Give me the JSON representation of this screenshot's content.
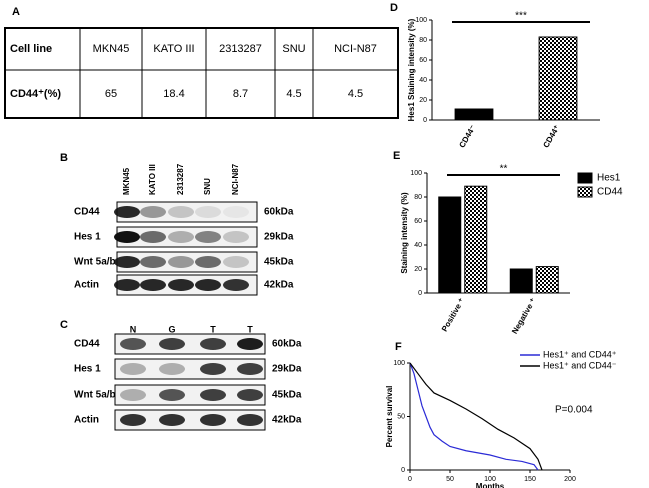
{
  "table": {
    "label": "A",
    "header": [
      "Cell line",
      "MKN45",
      "KATO III",
      "2313287",
      "SNU",
      "NCI-N87"
    ],
    "rows": [
      [
        "CD44⁺(%)",
        65,
        18.4,
        8.7,
        4.5,
        4.5
      ]
    ]
  },
  "blots": [
    {
      "label": "B",
      "lanes": [
        "MKN45",
        "KATO III",
        "2313287",
        "SNU",
        "NCI-N87"
      ],
      "rows": [
        {
          "name": "CD44",
          "size": "60kDa"
        },
        {
          "name": "Hes 1",
          "size": "29kDa"
        },
        {
          "name": "Wnt 5a/b",
          "size": "45kDa"
        },
        {
          "name": "Actin",
          "size": "42kDa"
        }
      ]
    },
    {
      "label": "C",
      "lanes": [
        "N",
        "G",
        "T",
        "T"
      ],
      "rows": [
        {
          "name": "CD44",
          "size": "60kDa"
        },
        {
          "name": "Hes 1",
          "size": "29kDa"
        },
        {
          "name": "Wnt 5a/b",
          "size": "45kDa"
        },
        {
          "name": "Actin",
          "size": "42kDa"
        }
      ]
    }
  ],
  "chart_data": [
    {
      "type": "bar",
      "label": "D",
      "y_label": "Hes1 Staining intensity (%)",
      "categories": [
        "CD44⁻",
        "CD44⁺"
      ],
      "values": [
        11,
        83
      ],
      "colors": [
        "#000000",
        "#000000"
      ],
      "patterns": [
        "solid",
        "checker"
      ],
      "ylim": [
        0,
        100
      ],
      "yticks": [
        0,
        20,
        40,
        60,
        80,
        100
      ],
      "annotation": "***"
    },
    {
      "type": "grouped_bar",
      "label": "E",
      "y_label": "Staining intensity (%)",
      "categories": [
        "Positive ⁺",
        "Negative ⁺"
      ],
      "series": [
        {
          "name": "Hes1",
          "color": "#000000",
          "pattern": "solid",
          "values": [
            80,
            20
          ]
        },
        {
          "name": "CD44",
          "color": "#000000",
          "pattern": "checker",
          "values": [
            89,
            22
          ]
        }
      ],
      "ylim": [
        0,
        100
      ],
      "yticks": [
        0,
        20,
        40,
        60,
        80,
        100
      ],
      "annotation": "**"
    },
    {
      "type": "line",
      "label": "F",
      "x_label": "Months",
      "y_label": "Percent survival",
      "series": [
        {
          "name": "Hes1⁺ and CD44⁺",
          "color": "#2b2bd6",
          "x": [
            0,
            5,
            10,
            15,
            20,
            25,
            30,
            40,
            50,
            70,
            100,
            120,
            140,
            155,
            160
          ],
          "values": [
            100,
            90,
            75,
            60,
            50,
            40,
            33,
            27,
            22,
            18,
            14,
            10,
            8,
            5,
            0
          ]
        },
        {
          "name": "Hes1⁺ and CD44⁻",
          "color": "#000000",
          "x": [
            0,
            10,
            20,
            30,
            50,
            70,
            90,
            110,
            130,
            150,
            160,
            165
          ],
          "values": [
            100,
            90,
            80,
            72,
            65,
            57,
            48,
            38,
            30,
            20,
            10,
            0
          ]
        }
      ],
      "xlim": [
        0,
        200
      ],
      "xticks": [
        0,
        50,
        100,
        150,
        200
      ],
      "ylim": [
        0,
        100
      ],
      "yticks": [
        0,
        50,
        100
      ],
      "annotation": "P=0.004"
    }
  ]
}
